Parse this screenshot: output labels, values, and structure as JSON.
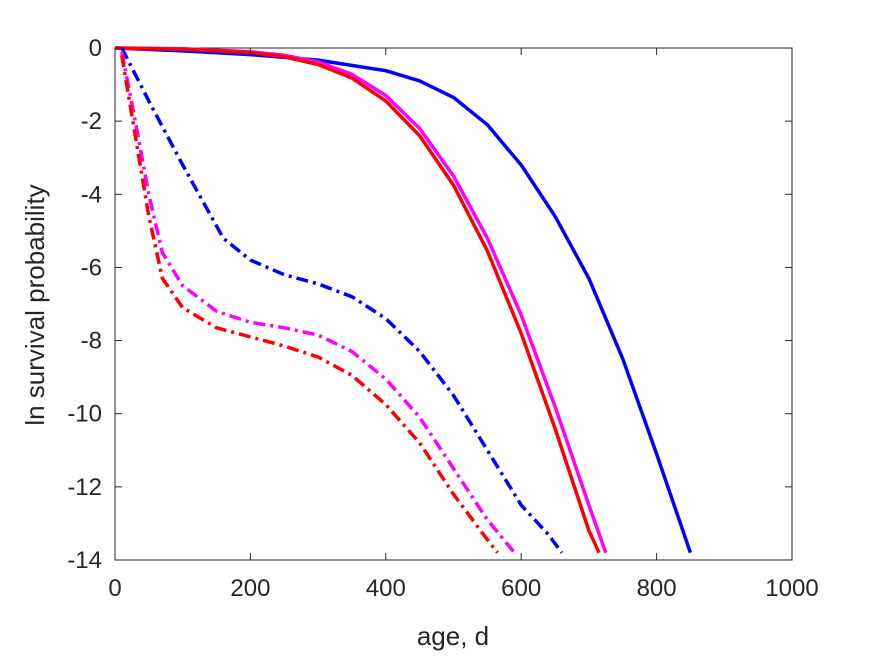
{
  "chart_data": {
    "type": "line",
    "title": "",
    "xlabel": "age, d",
    "ylabel": "ln survival probability",
    "xlim": [
      0,
      1000
    ],
    "ylim": [
      -14,
      0
    ],
    "xticks": [
      0,
      200,
      400,
      600,
      800,
      1000
    ],
    "yticks": [
      0,
      -2,
      -4,
      -6,
      -8,
      -10,
      -12,
      -14
    ],
    "xtick_labels": [
      "0",
      "200",
      "400",
      "600",
      "800",
      "1000"
    ],
    "ytick_labels": [
      "0",
      "-2",
      "-4",
      "-6",
      "-8",
      "-10",
      "-12",
      "-14"
    ],
    "grid": false,
    "legend": "none",
    "series": [
      {
        "color": "#0000ff",
        "style": "solid",
        "x": [
          0,
          100,
          200,
          300,
          400,
          450,
          500,
          550,
          600,
          650,
          700,
          750,
          800,
          850
        ],
        "y": [
          0,
          -0.08,
          -0.18,
          -0.33,
          -0.62,
          -0.9,
          -1.35,
          -2.1,
          -3.2,
          -4.6,
          -6.3,
          -8.5,
          -11.1,
          -13.8
        ]
      },
      {
        "color": "#ff00ff",
        "style": "solid",
        "x": [
          0,
          100,
          200,
          250,
          300,
          350,
          400,
          450,
          500,
          550,
          600,
          650,
          700,
          725
        ],
        "y": [
          0,
          -0.02,
          -0.1,
          -0.2,
          -0.38,
          -0.72,
          -1.3,
          -2.2,
          -3.5,
          -5.2,
          -7.3,
          -9.8,
          -12.5,
          -13.8
        ]
      },
      {
        "color": "#ff0000",
        "style": "solid",
        "x": [
          0,
          100,
          200,
          250,
          300,
          350,
          400,
          450,
          500,
          550,
          600,
          650,
          700,
          715
        ],
        "y": [
          0,
          -0.03,
          -0.12,
          -0.24,
          -0.45,
          -0.82,
          -1.45,
          -2.4,
          -3.75,
          -5.55,
          -7.8,
          -10.4,
          -13.2,
          -13.8
        ]
      },
      {
        "color": "#0000ff",
        "style": "dashdot",
        "x": [
          10,
          50,
          100,
          160,
          200,
          250,
          300,
          350,
          400,
          450,
          500,
          550,
          600,
          640,
          660
        ],
        "y": [
          0,
          -1.45,
          -3.2,
          -5.2,
          -5.8,
          -6.2,
          -6.45,
          -6.8,
          -7.4,
          -8.3,
          -9.5,
          -11.0,
          -12.5,
          -13.3,
          -13.8
        ]
      },
      {
        "color": "#ff00ff",
        "style": "dashdot",
        "x": [
          10,
          30,
          50,
          70,
          100,
          150,
          200,
          250,
          300,
          350,
          400,
          450,
          500,
          550,
          590
        ],
        "y": [
          -0.1,
          -2.0,
          -4.0,
          -5.6,
          -6.5,
          -7.2,
          -7.5,
          -7.65,
          -7.85,
          -8.3,
          -9.05,
          -10.1,
          -11.5,
          -12.9,
          -13.8
        ]
      },
      {
        "color": "#ff0000",
        "style": "dashdot",
        "x": [
          10,
          30,
          50,
          70,
          100,
          150,
          200,
          250,
          300,
          350,
          400,
          450,
          500,
          540,
          565
        ],
        "y": [
          -0.2,
          -2.4,
          -4.6,
          -6.3,
          -7.1,
          -7.65,
          -7.9,
          -8.15,
          -8.45,
          -8.95,
          -9.75,
          -10.8,
          -12.2,
          -13.2,
          -13.8
        ]
      }
    ]
  }
}
